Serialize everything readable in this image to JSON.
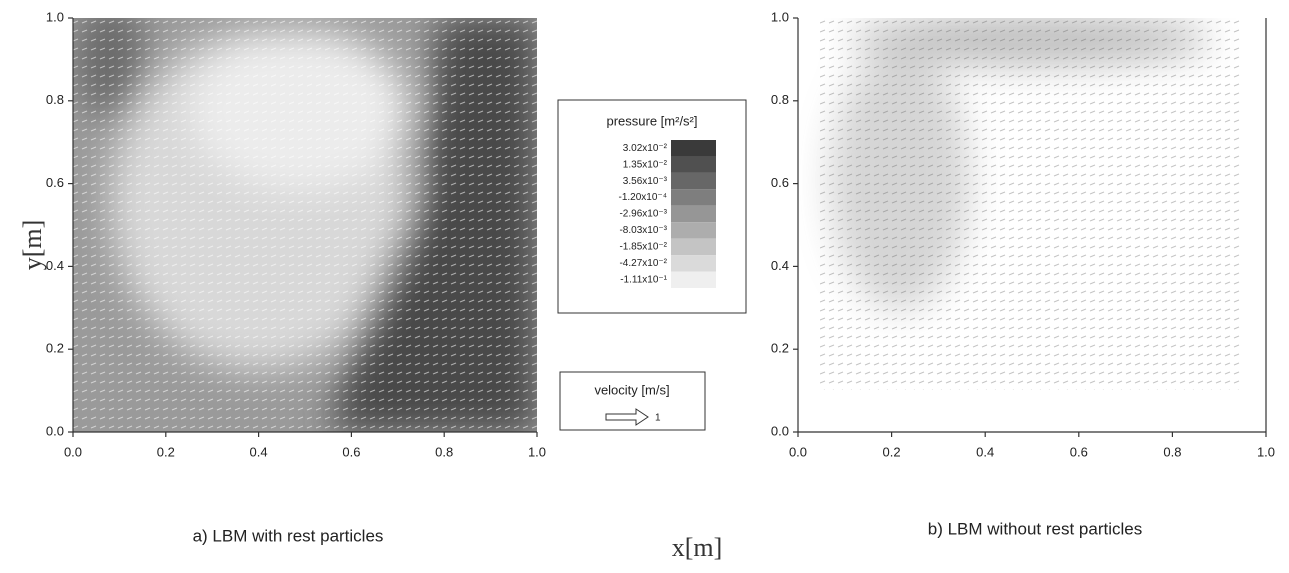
{
  "chart_data": [
    {
      "type": "quiver",
      "title": "a) LBM with rest particles",
      "xlim": [
        0,
        1
      ],
      "ylim": [
        0,
        1
      ],
      "xticks": [
        {
          "value": 0,
          "label": "0.0"
        },
        {
          "value": 0.2,
          "label": "0.2"
        },
        {
          "value": 0.4,
          "label": "0.4"
        },
        {
          "value": 0.6,
          "label": "0.6"
        },
        {
          "value": 0.8,
          "label": "0.8"
        },
        {
          "value": 1,
          "label": "1.0"
        }
      ],
      "yticks": [
        {
          "value": 0,
          "label": "0.0"
        },
        {
          "value": 0.2,
          "label": "0.2"
        },
        {
          "value": 0.4,
          "label": "0.4"
        },
        {
          "value": 0.6,
          "label": "0.6"
        },
        {
          "value": 0.8,
          "label": "0.8"
        },
        {
          "value": 1,
          "label": "1.0"
        }
      ]
    },
    {
      "type": "quiver",
      "title": "b) LBM without rest particles",
      "xlim": [
        0,
        1
      ],
      "ylim": [
        0,
        1
      ],
      "xticks": [
        {
          "value": 0,
          "label": "0.0"
        },
        {
          "value": 0.2,
          "label": "0.2"
        },
        {
          "value": 0.4,
          "label": "0.4"
        },
        {
          "value": 0.6,
          "label": "0.6"
        },
        {
          "value": 0.8,
          "label": "0.8"
        },
        {
          "value": 1,
          "label": "1.0"
        }
      ],
      "yticks": [
        {
          "value": 0,
          "label": "0.0"
        },
        {
          "value": 0.2,
          "label": "0.2"
        },
        {
          "value": 0.4,
          "label": "0.4"
        },
        {
          "value": 0.6,
          "label": "0.6"
        },
        {
          "value": 0.8,
          "label": "0.8"
        },
        {
          "value": 1,
          "label": "1.0"
        }
      ]
    }
  ],
  "figure": {
    "x_label": "x[m]",
    "y_label": "y[m]",
    "pressure_legend": {
      "title": "pressure  [m²/s²]",
      "levels": [
        {
          "value": 0.0302,
          "label": "3.02x10⁻²"
        },
        {
          "value": 0.0135,
          "label": "1.35x10⁻²"
        },
        {
          "value": 0.00356,
          "label": "3.56x10⁻³"
        },
        {
          "value": -0.00012,
          "label": "-1.20x10⁻⁴"
        },
        {
          "value": -0.00296,
          "label": "-2.96x10⁻³"
        },
        {
          "value": -0.00803,
          "label": "-8.03x10⁻³"
        },
        {
          "value": -0.0185,
          "label": "-1.85x10⁻²"
        },
        {
          "value": -0.0427,
          "label": "-4.27x10⁻²"
        },
        {
          "value": -0.111,
          "label": "-1.11x10⁻¹"
        }
      ],
      "colors": [
        "#3a3a3a",
        "#505050",
        "#676767",
        "#7e7e7e",
        "#969696",
        "#adadad",
        "#c4c4c4",
        "#dadada",
        "#efefef"
      ]
    },
    "velocity_legend": {
      "title": "velocity [m/s]",
      "scale": 1
    }
  }
}
